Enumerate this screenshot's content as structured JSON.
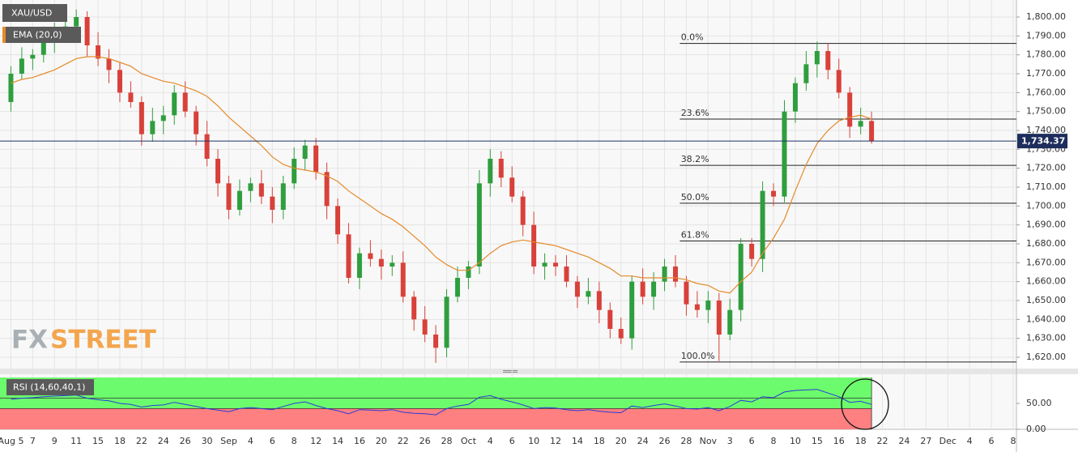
{
  "chart_data": [
    {
      "type": "candlestick",
      "name": "XAU/USD",
      "x": [
        1,
        2,
        3,
        4,
        5,
        6,
        7,
        8,
        9,
        10,
        11,
        12,
        13,
        14,
        15,
        16,
        17,
        18,
        19,
        20,
        21,
        22,
        23,
        24,
        25,
        26,
        27,
        28,
        29,
        30,
        31,
        32,
        33,
        34,
        35,
        36,
        37,
        38,
        39,
        40,
        41,
        42,
        43,
        44,
        45,
        46,
        47,
        48,
        49,
        50,
        51,
        52,
        53,
        54,
        55,
        56,
        57,
        58,
        59,
        60,
        61,
        62,
        63,
        64,
        65,
        66,
        67,
        68,
        69,
        70,
        71,
        72,
        73,
        74,
        75,
        76,
        77,
        78,
        79,
        80
      ],
      "open": [
        1755,
        1770,
        1778,
        1780,
        1788,
        1792,
        1795,
        1800,
        1785,
        1778,
        1772,
        1760,
        1755,
        1738,
        1745,
        1748,
        1760,
        1750,
        1738,
        1725,
        1712,
        1698,
        1708,
        1712,
        1705,
        1698,
        1712,
        1725,
        1732,
        1718,
        1700,
        1685,
        1662,
        1675,
        1672,
        1668,
        1670,
        1652,
        1640,
        1632,
        1625,
        1652,
        1662,
        1668,
        1712,
        1725,
        1715,
        1705,
        1690,
        1668,
        1670,
        1668,
        1660,
        1652,
        1655,
        1645,
        1635,
        1630,
        1660,
        1652,
        1660,
        1668,
        1660,
        1648,
        1645,
        1650,
        1632,
        1645,
        1680,
        1672,
        1708,
        1705,
        1750,
        1765,
        1775,
        1782,
        1772,
        1760,
        1742,
        1745
      ],
      "high": [
        1774,
        1784,
        1783,
        1795,
        1797,
        1799,
        1804,
        1803,
        1792,
        1783,
        1776,
        1766,
        1758,
        1752,
        1753,
        1764,
        1766,
        1753,
        1745,
        1730,
        1716,
        1714,
        1715,
        1719,
        1710,
        1716,
        1731,
        1735,
        1736,
        1723,
        1704,
        1691,
        1678,
        1682,
        1677,
        1674,
        1676,
        1655,
        1647,
        1637,
        1656,
        1668,
        1671,
        1719,
        1730,
        1729,
        1721,
        1708,
        1697,
        1675,
        1674,
        1674,
        1663,
        1662,
        1660,
        1649,
        1641,
        1663,
        1667,
        1665,
        1672,
        1674,
        1663,
        1655,
        1655,
        1654,
        1651,
        1683,
        1683,
        1713,
        1712,
        1756,
        1768,
        1782,
        1787,
        1786,
        1778,
        1763,
        1752,
        1750
      ],
      "low": [
        1750,
        1767,
        1772,
        1776,
        1781,
        1787,
        1792,
        1779,
        1774,
        1765,
        1755,
        1752,
        1732,
        1734,
        1738,
        1743,
        1747,
        1732,
        1721,
        1705,
        1693,
        1695,
        1702,
        1701,
        1691,
        1693,
        1709,
        1719,
        1714,
        1693,
        1680,
        1659,
        1656,
        1668,
        1661,
        1663,
        1649,
        1634,
        1628,
        1617,
        1620,
        1649,
        1656,
        1664,
        1705,
        1710,
        1702,
        1684,
        1664,
        1661,
        1663,
        1657,
        1646,
        1648,
        1638,
        1630,
        1627,
        1624,
        1648,
        1645,
        1655,
        1657,
        1642,
        1641,
        1638,
        1618,
        1629,
        1639,
        1668,
        1665,
        1700,
        1702,
        1744,
        1761,
        1768,
        1767,
        1757,
        1736,
        1738,
        1733
      ],
      "close": [
        1770,
        1778,
        1780,
        1788,
        1792,
        1795,
        1800,
        1785,
        1778,
        1772,
        1760,
        1755,
        1738,
        1745,
        1748,
        1760,
        1750,
        1738,
        1725,
        1712,
        1698,
        1708,
        1712,
        1705,
        1698,
        1712,
        1725,
        1732,
        1718,
        1700,
        1685,
        1662,
        1675,
        1672,
        1668,
        1670,
        1652,
        1640,
        1632,
        1625,
        1652,
        1662,
        1668,
        1712,
        1725,
        1715,
        1705,
        1690,
        1668,
        1670,
        1668,
        1660,
        1652,
        1655,
        1645,
        1635,
        1630,
        1660,
        1652,
        1660,
        1668,
        1660,
        1648,
        1645,
        1650,
        1632,
        1645,
        1680,
        1672,
        1708,
        1705,
        1750,
        1765,
        1775,
        1782,
        1772,
        1760,
        1742,
        1745,
        1734.37
      ],
      "up_color": "#2f9e3e",
      "down_color": "#d8413a",
      "overlays": [
        {
          "name": "EMA (20,0)",
          "color": "#e58a2b",
          "values": [
            1765,
            1767,
            1768,
            1770,
            1772,
            1775,
            1778,
            1779,
            1779,
            1778,
            1776,
            1774,
            1770,
            1768,
            1766,
            1765,
            1763,
            1761,
            1758,
            1753,
            1747,
            1742,
            1737,
            1732,
            1726,
            1722,
            1720,
            1719,
            1718,
            1716,
            1713,
            1708,
            1704,
            1700,
            1696,
            1693,
            1689,
            1684,
            1679,
            1673,
            1669,
            1666,
            1666,
            1670,
            1675,
            1679,
            1681,
            1682,
            1681,
            1680,
            1679,
            1677,
            1675,
            1673,
            1670,
            1667,
            1663,
            1663,
            1662,
            1662,
            1662,
            1662,
            1661,
            1659,
            1658,
            1655,
            1654,
            1660,
            1665,
            1675,
            1683,
            1693,
            1708,
            1722,
            1733,
            1740,
            1745,
            1747,
            1748,
            1746
          ]
        }
      ],
      "fib_levels": [
        {
          "label": "0.0%",
          "price": 1786
        },
        {
          "label": "23.6%",
          "price": 1746
        },
        {
          "label": "38.2%",
          "price": 1721.5
        },
        {
          "label": "50.0%",
          "price": 1701.5
        },
        {
          "label": "61.8%",
          "price": 1681.5
        },
        {
          "label": "100.0%",
          "price": 1617.5
        }
      ],
      "last_price": {
        "value": 1734.37,
        "label": "1,734.37"
      },
      "watermark": [
        "FX",
        "STREET"
      ],
      "xlim": [
        0,
        93.3
      ],
      "ylim": [
        1614,
        1809
      ],
      "yticks": [
        {
          "value": 1620,
          "label": "1,620.00"
        },
        {
          "value": 1630,
          "label": "1,630.00"
        },
        {
          "value": 1640,
          "label": "1,640.00"
        },
        {
          "value": 1650,
          "label": "1,650.00"
        },
        {
          "value": 1660,
          "label": "1,660.00"
        },
        {
          "value": 1670,
          "label": "1,670.00"
        },
        {
          "value": 1680,
          "label": "1,680.00"
        },
        {
          "value": 1690,
          "label": "1,690.00"
        },
        {
          "value": 1700,
          "label": "1,700.00"
        },
        {
          "value": 1710,
          "label": "1,710.00"
        },
        {
          "value": 1720,
          "label": "1,720.00"
        },
        {
          "value": 1730,
          "label": "1,730.00"
        },
        {
          "value": 1740,
          "label": "1,740.00"
        },
        {
          "value": 1750,
          "label": "1,750.00"
        },
        {
          "value": 1760,
          "label": "1,760.00"
        },
        {
          "value": 1770,
          "label": "1,770.00"
        },
        {
          "value": 1780,
          "label": "1,780.00"
        },
        {
          "value": 1790,
          "label": "1,790.00"
        },
        {
          "value": 1800,
          "label": "1,800.00"
        }
      ],
      "xticks": [
        {
          "value": 1,
          "label": "Aug 5"
        },
        {
          "value": 3,
          "label": "7"
        },
        {
          "value": 5,
          "label": "9"
        },
        {
          "value": 7,
          "label": "11"
        },
        {
          "value": 9,
          "label": "15"
        },
        {
          "value": 11,
          "label": "18"
        },
        {
          "value": 13,
          "label": "22"
        },
        {
          "value": 15,
          "label": "24"
        },
        {
          "value": 17,
          "label": "26"
        },
        {
          "value": 19,
          "label": "30"
        },
        {
          "value": 21,
          "label": "Sep"
        },
        {
          "value": 23,
          "label": "4"
        },
        {
          "value": 25,
          "label": "6"
        },
        {
          "value": 27,
          "label": "8"
        },
        {
          "value": 29,
          "label": "12"
        },
        {
          "value": 31,
          "label": "14"
        },
        {
          "value": 33,
          "label": "16"
        },
        {
          "value": 35,
          "label": "20"
        },
        {
          "value": 37,
          "label": "22"
        },
        {
          "value": 39,
          "label": "26"
        },
        {
          "value": 41,
          "label": "28"
        },
        {
          "value": 43,
          "label": "Oct"
        },
        {
          "value": 45,
          "label": "4"
        },
        {
          "value": 47,
          "label": "6"
        },
        {
          "value": 49,
          "label": "10"
        },
        {
          "value": 51,
          "label": "12"
        },
        {
          "value": 53,
          "label": "14"
        },
        {
          "value": 55,
          "label": "18"
        },
        {
          "value": 57,
          "label": "20"
        },
        {
          "value": 59,
          "label": "24"
        },
        {
          "value": 61,
          "label": "26"
        },
        {
          "value": 63,
          "label": "28"
        },
        {
          "value": 65,
          "label": "Nov"
        },
        {
          "value": 67,
          "label": "3"
        },
        {
          "value": 69,
          "label": "6"
        },
        {
          "value": 71,
          "label": "8"
        },
        {
          "value": 73,
          "label": "10"
        },
        {
          "value": 75,
          "label": "15"
        },
        {
          "value": 77,
          "label": "16"
        },
        {
          "value": 79,
          "label": "18"
        },
        {
          "value": 81,
          "label": "22"
        },
        {
          "value": 83,
          "label": "24"
        },
        {
          "value": 85,
          "label": "27"
        },
        {
          "value": 87,
          "label": "Dec"
        },
        {
          "value": 89,
          "label": "4"
        },
        {
          "value": 91,
          "label": "6"
        },
        {
          "value": 93,
          "label": "8"
        }
      ]
    },
    {
      "type": "line",
      "name": "RSI (14,60,40,1)",
      "color": "#2a3ad8",
      "x": [
        1,
        2,
        3,
        4,
        5,
        6,
        7,
        8,
        9,
        10,
        11,
        12,
        13,
        14,
        15,
        16,
        17,
        18,
        19,
        20,
        21,
        22,
        23,
        24,
        25,
        26,
        27,
        28,
        29,
        30,
        31,
        32,
        33,
        34,
        35,
        36,
        37,
        38,
        39,
        40,
        41,
        42,
        43,
        44,
        45,
        46,
        47,
        48,
        49,
        50,
        51,
        52,
        53,
        54,
        55,
        56,
        57,
        58,
        59,
        60,
        61,
        62,
        63,
        64,
        65,
        66,
        67,
        68,
        69,
        70,
        71,
        72,
        73,
        74,
        75,
        76,
        77,
        78,
        79,
        80
      ],
      "values": [
        58,
        60,
        61,
        63,
        64,
        65,
        66,
        60,
        57,
        55,
        50,
        48,
        43,
        46,
        47,
        52,
        48,
        44,
        40,
        37,
        34,
        40,
        42,
        40,
        38,
        44,
        50,
        53,
        46,
        40,
        36,
        30,
        38,
        37,
        36,
        38,
        33,
        31,
        30,
        28,
        40,
        45,
        48,
        62,
        65,
        58,
        53,
        47,
        40,
        42,
        41,
        38,
        36,
        38,
        35,
        33,
        32,
        45,
        42,
        46,
        49,
        45,
        40,
        39,
        42,
        36,
        44,
        56,
        53,
        63,
        61,
        72,
        75,
        76,
        77,
        70,
        63,
        52,
        54,
        48
      ],
      "bands": [
        {
          "from": 40,
          "to": 100,
          "color": "#6cfb6c"
        },
        {
          "from": 0,
          "to": 40,
          "color": "#ff8080"
        }
      ],
      "levels": [
        60,
        40
      ],
      "xlim": [
        0,
        93.3
      ],
      "ylim": [
        0,
        100
      ],
      "yticks": [
        {
          "value": 50,
          "label": "50.00"
        },
        {
          "value": 0,
          "label": "0.00"
        }
      ]
    }
  ]
}
